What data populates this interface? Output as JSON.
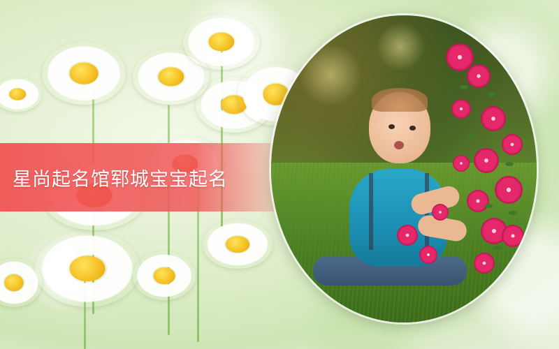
{
  "banner": {
    "title": "星尚起名馆郓城宝宝起名"
  },
  "photo": {
    "subject": "baby-in-garden"
  },
  "colors": {
    "banner_red": "#f05050",
    "daisy_yellow": "#f2b81a",
    "daisy_orange": "#f25a1a",
    "grass_green": "#4c8024",
    "flower_pink": "#e4286a"
  }
}
